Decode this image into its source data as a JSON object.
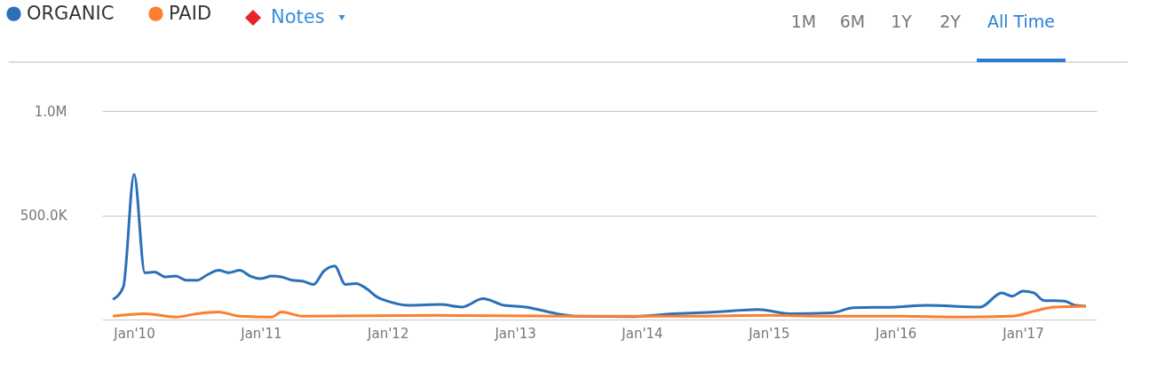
{
  "chart_data": {
    "type": "line",
    "series": [
      {
        "name": "ORGANIC",
        "color": "#2a70b8",
        "x": [
          "2009-11",
          "2009-12",
          "2010-01",
          "2010-02",
          "2010-03",
          "2010-04",
          "2010-05",
          "2010-06",
          "2010-07",
          "2010-08",
          "2010-09",
          "2010-10",
          "2010-11",
          "2010-12",
          "2011-01",
          "2011-02",
          "2011-03",
          "2011-04",
          "2011-05",
          "2011-06",
          "2011-07",
          "2011-08",
          "2011-09",
          "2011-10",
          "2011-11",
          "2011-12",
          "2012-01",
          "2012-03",
          "2012-06",
          "2012-08",
          "2012-10",
          "2012-12",
          "2013-02",
          "2013-05",
          "2013-07",
          "2013-12",
          "2014-04",
          "2014-08",
          "2014-12",
          "2015-03",
          "2015-07",
          "2015-09",
          "2016-01",
          "2016-04",
          "2016-09",
          "2016-11",
          "2016-12",
          "2017-01",
          "2017-02",
          "2017-03",
          "2017-05",
          "2017-06",
          "2017-07"
        ],
        "values": [
          96000,
          156000,
          696000,
          224000,
          228000,
          204000,
          208000,
          188000,
          188000,
          216000,
          236000,
          224000,
          236000,
          208000,
          196000,
          208000,
          204000,
          188000,
          184000,
          168000,
          232000,
          256000,
          168000,
          172000,
          148000,
          108000,
          88000,
          68000,
          72000,
          60000,
          100000,
          68000,
          60000,
          28000,
          16000,
          14000,
          28000,
          36000,
          48000,
          28000,
          32000,
          56000,
          60000,
          68000,
          60000,
          128000,
          112000,
          136000,
          128000,
          92000,
          88000,
          68000,
          64000
        ]
      },
      {
        "name": "PAID",
        "color": "#fd7e2e",
        "x": [
          "2009-11",
          "2010-02",
          "2010-05",
          "2010-07",
          "2010-09",
          "2010-11",
          "2011-02",
          "2011-03",
          "2011-05",
          "2012-06",
          "2013-06",
          "2014-06",
          "2015-01",
          "2015-06",
          "2016-01",
          "2016-07",
          "2016-12",
          "2017-02",
          "2017-04",
          "2017-07"
        ],
        "values": [
          16000,
          28000,
          12000,
          28000,
          36000,
          16000,
          12000,
          36000,
          16000,
          20000,
          16000,
          16000,
          20000,
          16000,
          16000,
          12000,
          16000,
          40000,
          60000,
          64000
        ]
      }
    ],
    "xlim": [
      "2009-10",
      "2017-08"
    ],
    "xticks": [
      {
        "value": "2010-01",
        "label": "Jan'10"
      },
      {
        "value": "2011-01",
        "label": "Jan'11"
      },
      {
        "value": "2012-01",
        "label": "Jan'12"
      },
      {
        "value": "2013-01",
        "label": "Jan'13"
      },
      {
        "value": "2014-01",
        "label": "Jan'14"
      },
      {
        "value": "2015-01",
        "label": "Jan'15"
      },
      {
        "value": "2016-01",
        "label": "Jan'16"
      },
      {
        "value": "2017-01",
        "label": "Jan'17"
      }
    ],
    "ylim": [
      0,
      1000000
    ],
    "yticks": [
      {
        "value": 0,
        "label": null
      },
      {
        "value": 500000,
        "label": "500.0K"
      },
      {
        "value": 1000000,
        "label": "1.0M"
      }
    ],
    "grid": "y",
    "legend": "top left",
    "marker": "none",
    "line_style": "solid",
    "annotations": [
      "Notes",
      "1M",
      "6M",
      "1Y",
      "2Y",
      "All Time"
    ]
  }
}
